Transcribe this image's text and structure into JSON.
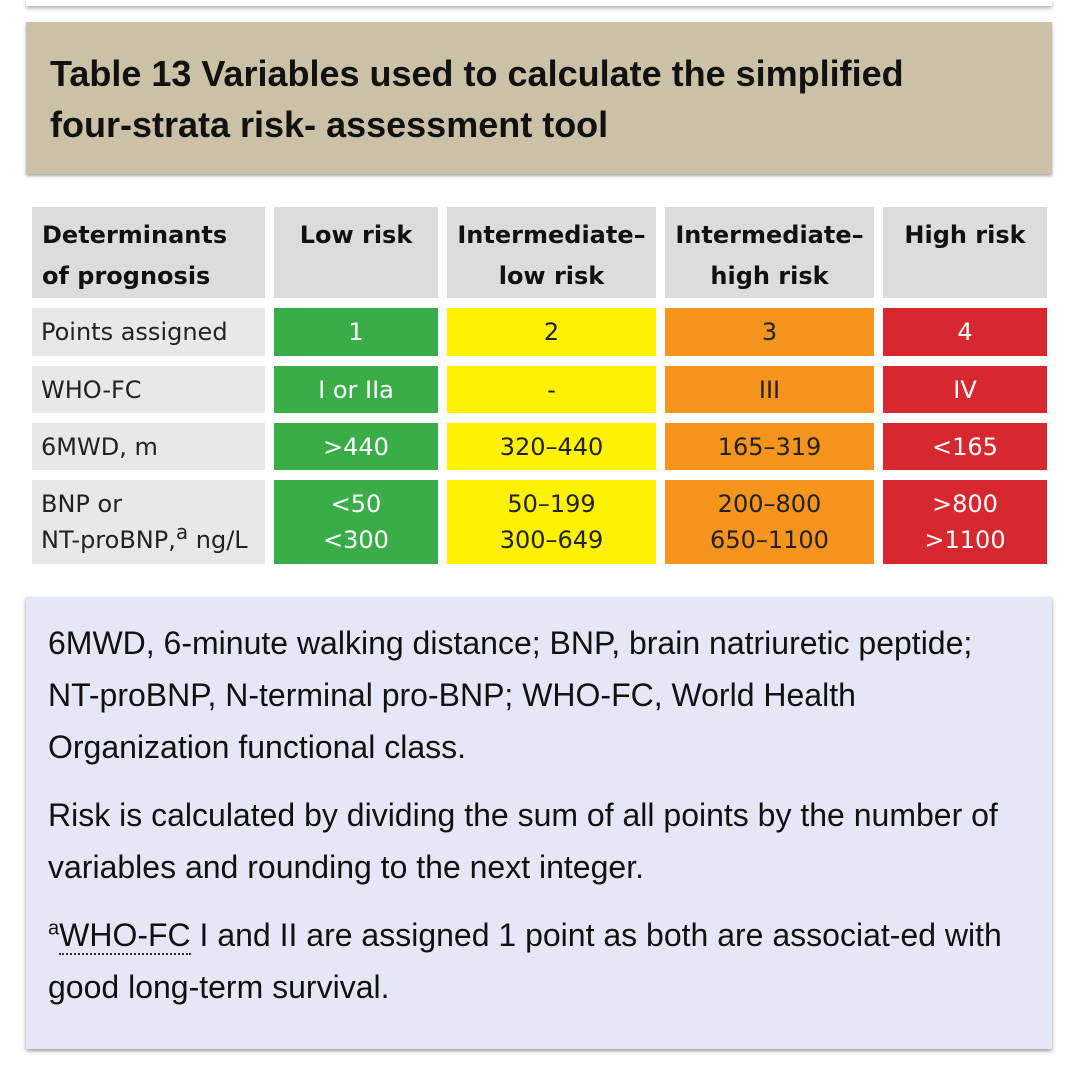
{
  "title": {
    "line1": "Table 13 Variables used to calculate the simplified",
    "line2": "four-strata risk- assessment tool"
  },
  "table": {
    "headers": {
      "determinants_1": "Determinants",
      "determinants_2": "of prognosis",
      "low": "Low risk",
      "int_low_1": "Intermediate–",
      "int_low_2": "low risk",
      "int_high_1": "Intermediate–",
      "int_high_2": "high risk",
      "high": "High risk"
    },
    "rows": {
      "points": {
        "label": "Points assigned",
        "low": "1",
        "int_low": "2",
        "int_high": "3",
        "high": "4"
      },
      "whofc": {
        "label": "WHO-FC",
        "low": "I or IIa",
        "int_low": "-",
        "int_high": "III",
        "high": "IV"
      },
      "mwd": {
        "label": "6MWD, m",
        "low": ">440",
        "int_low": "320–440",
        "int_high": "165–319",
        "high": "<165"
      },
      "bnp": {
        "label_1": "BNP or",
        "label_2": "NT-proBNP,",
        "label_sup": "a",
        "label_3": " ng/L",
        "low_1": "<50",
        "low_2": "<300",
        "int_low_1": "50–199",
        "int_low_2": "300–649",
        "int_high_1": "200–800",
        "int_high_2": "650–1100",
        "high_1": ">800",
        "high_2": ">1100"
      }
    },
    "colors": {
      "low": "#3aac48",
      "int_low": "#fff200",
      "int_high": "#f7941d",
      "high": "#d7282f",
      "header": "#dcdcdc",
      "label": "#e8e8e8"
    }
  },
  "notes": {
    "abbreviations": "6MWD, 6-minute walking distance; BNP, brain natriuretic peptide; NT-proBNP, N-terminal pro-BNP; WHO-FC, World Health Organization functional class.",
    "risk_calc": "Risk is calculated by dividing the sum of all points by the number of variables and rounding to the next integer.",
    "footnote_sup": "a",
    "footnote_link": "WHO-FC",
    "footnote_rest": " I and II are assigned 1 point as both are associat-ed with good long-term survival."
  },
  "background": {
    "title_box": "#cbc1a6",
    "notes_box": "#e5e7f6"
  }
}
